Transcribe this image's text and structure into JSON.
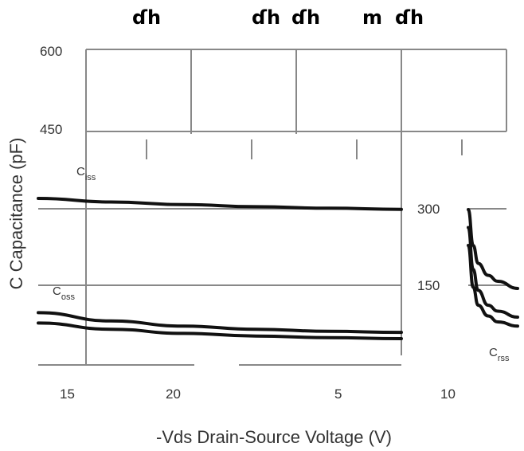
{
  "chart_data": {
    "type": "line",
    "header_labels": [
      "ɗh",
      "ɗh",
      "ɗh",
      "m",
      "ɗh"
    ],
    "xlabel": "-Vds Drain-Source Voltage (V)",
    "ylabel": "C Capacitance (pF)",
    "x_tick_labels": [
      "15",
      "20",
      "5",
      "10"
    ],
    "y_tick_labels_left": [
      "600",
      "450"
    ],
    "y_tick_labels_inner": [
      "300",
      "150"
    ],
    "annotations": {
      "ciss": {
        "main": "C",
        "sub": "iss"
      },
      "coss": {
        "main": "C",
        "sub": "oss"
      },
      "crss": {
        "main": "C",
        "sub": "rss"
      }
    },
    "series": [
      {
        "name": "Ciss",
        "x": [
          0,
          5,
          10,
          15,
          20,
          25
        ],
        "values": [
          320,
          313,
          308,
          304,
          301,
          299
        ]
      },
      {
        "name": "Coss",
        "x": [
          0,
          5,
          10,
          15,
          20,
          25
        ],
        "values": [
          100,
          84,
          74,
          68,
          64,
          62
        ]
      },
      {
        "name": "Crss",
        "x": [
          0,
          5,
          10,
          15,
          20,
          25
        ],
        "values": [
          80,
          68,
          60,
          55,
          52,
          50
        ]
      },
      {
        "name": "",
        "x": [
          0,
          1,
          2,
          4,
          6,
          10
        ],
        "values": [
          260,
          200,
          170,
          150,
          140,
          128
        ]
      },
      {
        "name": "",
        "x": [
          0,
          1,
          2,
          4,
          6,
          10
        ],
        "values": [
          230,
          160,
          125,
          100,
          90,
          80
        ]
      },
      {
        "name": "",
        "x": [
          0,
          1,
          2,
          4,
          6,
          10
        ],
        "values": [
          200,
          130,
          100,
          82,
          72,
          65
        ]
      }
    ],
    "colors": {
      "curve": "#111111",
      "grid": "#888888",
      "text": "#333333"
    }
  }
}
